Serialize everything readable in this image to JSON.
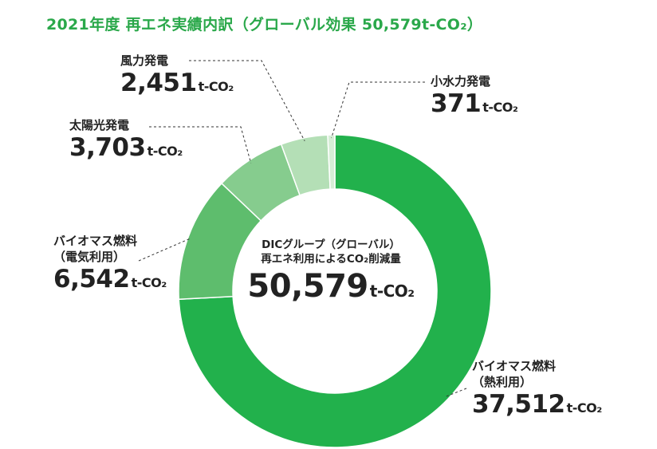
{
  "title": "2021年度 再エネ実績内訳（グローバル効果 50,579t-CO₂）",
  "center": {
    "line1": "DICグループ（グローバル）",
    "line2": "再エネ利用によるCO₂削減量",
    "total": "50,579",
    "unit": "t-CO₂"
  },
  "colors": {
    "biomass_heat": "#22b14c",
    "biomass_power": "#5ebd6d",
    "solar": "#86cc8e",
    "wind": "#b4dfb6",
    "hydro": "#d6eed6",
    "title": "#2aa84a"
  },
  "chart_data": {
    "type": "pie",
    "title": "2021年度 再エネ実績内訳（グローバル効果 50,579t-CO₂）",
    "donut": true,
    "unit": "t-CO₂",
    "total": 50579,
    "slices": [
      {
        "key": "biomass_heat",
        "label_line1": "バイオマス燃料",
        "label_line2": "（熱利用）",
        "value": 37512,
        "display": "37,512"
      },
      {
        "key": "biomass_power",
        "label_line1": "バイオマス燃料",
        "label_line2": "（電気利用）",
        "value": 6542,
        "display": "6,542"
      },
      {
        "key": "solar",
        "label_line1": "太陽光発電",
        "label_line2": "",
        "value": 3703,
        "display": "3,703"
      },
      {
        "key": "wind",
        "label_line1": "風力発電",
        "label_line2": "",
        "value": 2451,
        "display": "2,451"
      },
      {
        "key": "hydro",
        "label_line1": "小水力発電",
        "label_line2": "",
        "value": 371,
        "display": "371"
      }
    ]
  }
}
